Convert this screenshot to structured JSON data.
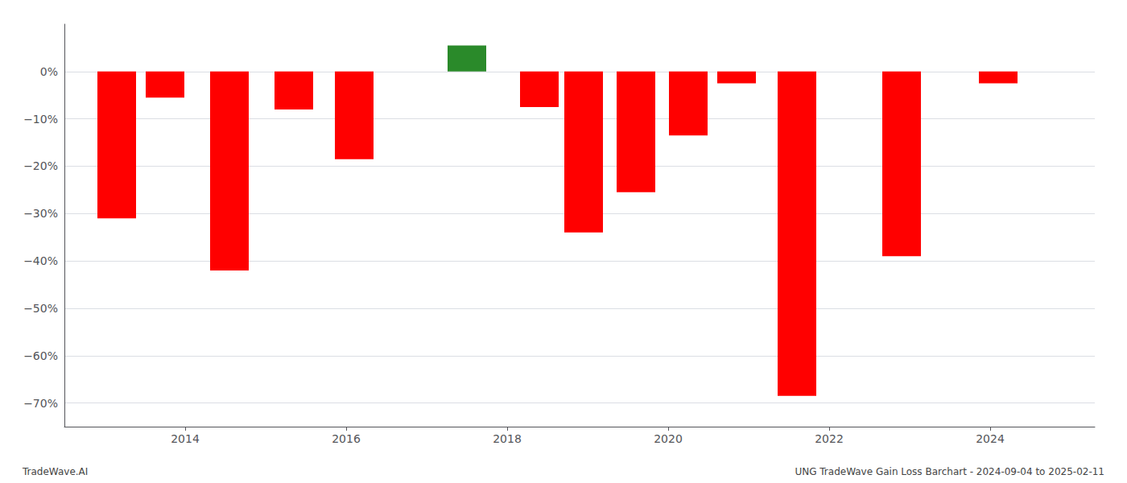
{
  "chart_data": {
    "type": "bar",
    "x": [
      2013.15,
      2013.75,
      2014.55,
      2015.35,
      2016.1,
      2017.5,
      2018.4,
      2018.95,
      2019.6,
      2020.25,
      2020.85,
      2021.6,
      2022.9,
      2024.1
    ],
    "values": [
      -31.0,
      -5.5,
      -42.0,
      -8.0,
      -18.5,
      5.5,
      -7.5,
      -34.0,
      -25.5,
      -13.5,
      -2.5,
      -68.5,
      -39.0,
      -2.5
    ],
    "colors": [
      "#FF0000",
      "#FF0000",
      "#FF0000",
      "#FF0000",
      "#FF0000",
      "#2a8a2a",
      "#FF0000",
      "#FF0000",
      "#FF0000",
      "#FF0000",
      "#FF0000",
      "#FF0000",
      "#FF0000",
      "#FF0000"
    ],
    "xlim": [
      2012.5,
      2025.3
    ],
    "xticks": [
      2014,
      2016,
      2018,
      2020,
      2022,
      2024
    ],
    "ylim": [
      -75,
      10
    ],
    "yticks": [
      {
        "value": 0,
        "label": "0%"
      },
      {
        "value": -10,
        "label": "−10%"
      },
      {
        "value": -20,
        "label": "−20%"
      },
      {
        "value": -30,
        "label": "−30%"
      },
      {
        "value": -40,
        "label": "−40%"
      },
      {
        "value": -50,
        "label": "−50%"
      },
      {
        "value": -60,
        "label": "−60%"
      },
      {
        "value": -70,
        "label": "−70%"
      }
    ],
    "grid": true,
    "annotations": [
      "TradeWave.AI",
      "UNG TradeWave Gain Loss Barchart - 2024-09-04 to 2025-02-11"
    ]
  }
}
